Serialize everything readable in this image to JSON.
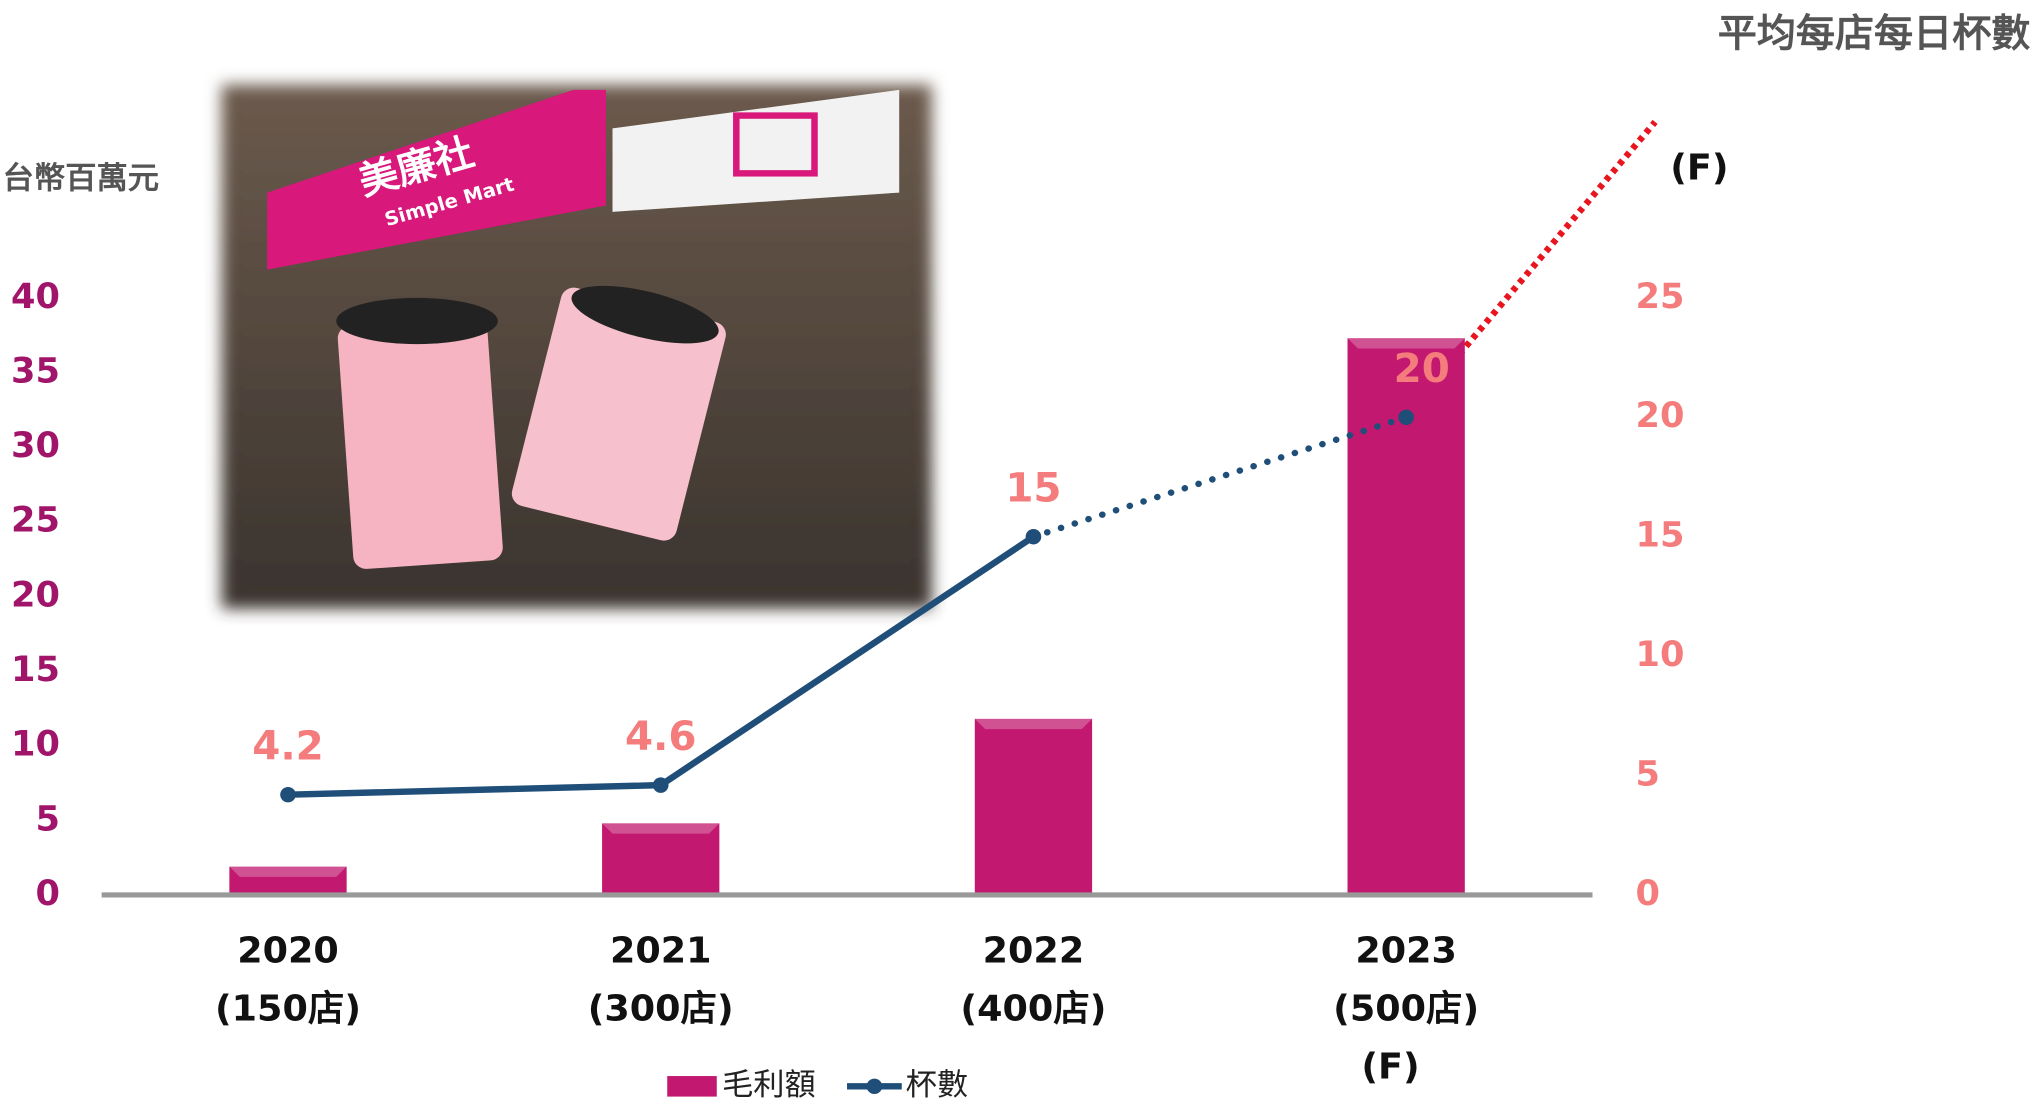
{
  "chart_data": {
    "type": "bar_line",
    "y_label": "台幣百萬元",
    "y2_label": "平均每店每日杯數",
    "categories": [
      [
        "2020",
        "(150店)"
      ],
      [
        "2021",
        "(300店)"
      ],
      [
        "2022",
        "(400店)"
      ],
      [
        "2023",
        "(500店)",
        "(F)"
      ]
    ],
    "annotation": "(F)",
    "image_text": [
      "美廉社",
      "Simple Mart"
    ],
    "series": [
      {
        "name": "毛利額",
        "type": "bar",
        "color": "#c2186f",
        "values": [
          1.9,
          4.8,
          11.8,
          37.3
        ]
      },
      {
        "name": "杯數",
        "type": "line",
        "axis": "y2",
        "color": "#1f4e79",
        "values": [
          4.2,
          4.6,
          15,
          20
        ],
        "dotted_from": 2,
        "label_color": "#f47c7c"
      }
    ],
    "forecast_color": "#e8141e",
    "ylim": [
      0,
      40
    ],
    "yticks": [
      0,
      5,
      10,
      15,
      20,
      25,
      30,
      35,
      40
    ],
    "ytick_color": "#a0146a",
    "y2lim": [
      0,
      25
    ],
    "y2ticks": [
      0,
      5,
      10,
      15,
      20,
      25
    ],
    "y2tick_color": "#f47c7c"
  }
}
